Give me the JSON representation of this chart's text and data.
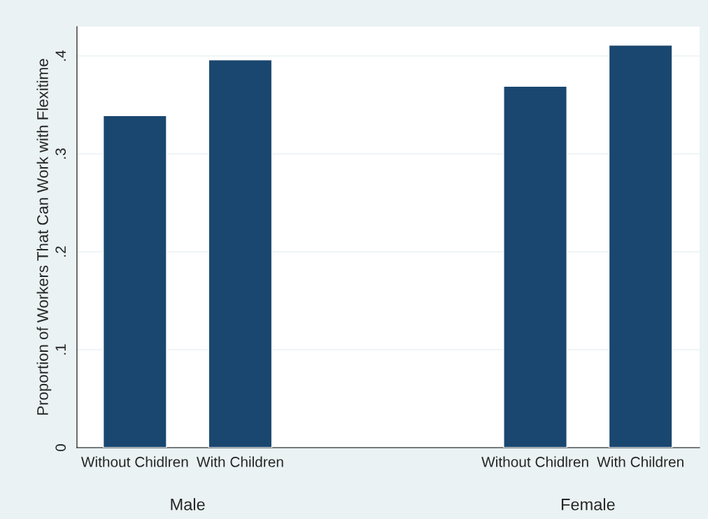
{
  "chart_data": {
    "type": "bar",
    "ylabel": "Proportion of Workers That Can Work with Flexitime",
    "categories": [
      "Without Chidlren",
      "With Children",
      "Without Chidlren",
      "With Children"
    ],
    "values": [
      0.339,
      0.396,
      0.369,
      0.411
    ],
    "color": "#1a476f",
    "ylim": [
      0,
      0.43
    ],
    "yticks": [
      {
        "value": 0,
        "label": "0"
      },
      {
        "value": 0.1,
        "label": ".1"
      },
      {
        "value": 0.2,
        "label": ".2"
      },
      {
        "value": 0.3,
        "label": ".3"
      },
      {
        "value": 0.4,
        "label": ".4"
      }
    ],
    "grid": "y",
    "annotations": [
      "Male",
      "Female"
    ]
  }
}
